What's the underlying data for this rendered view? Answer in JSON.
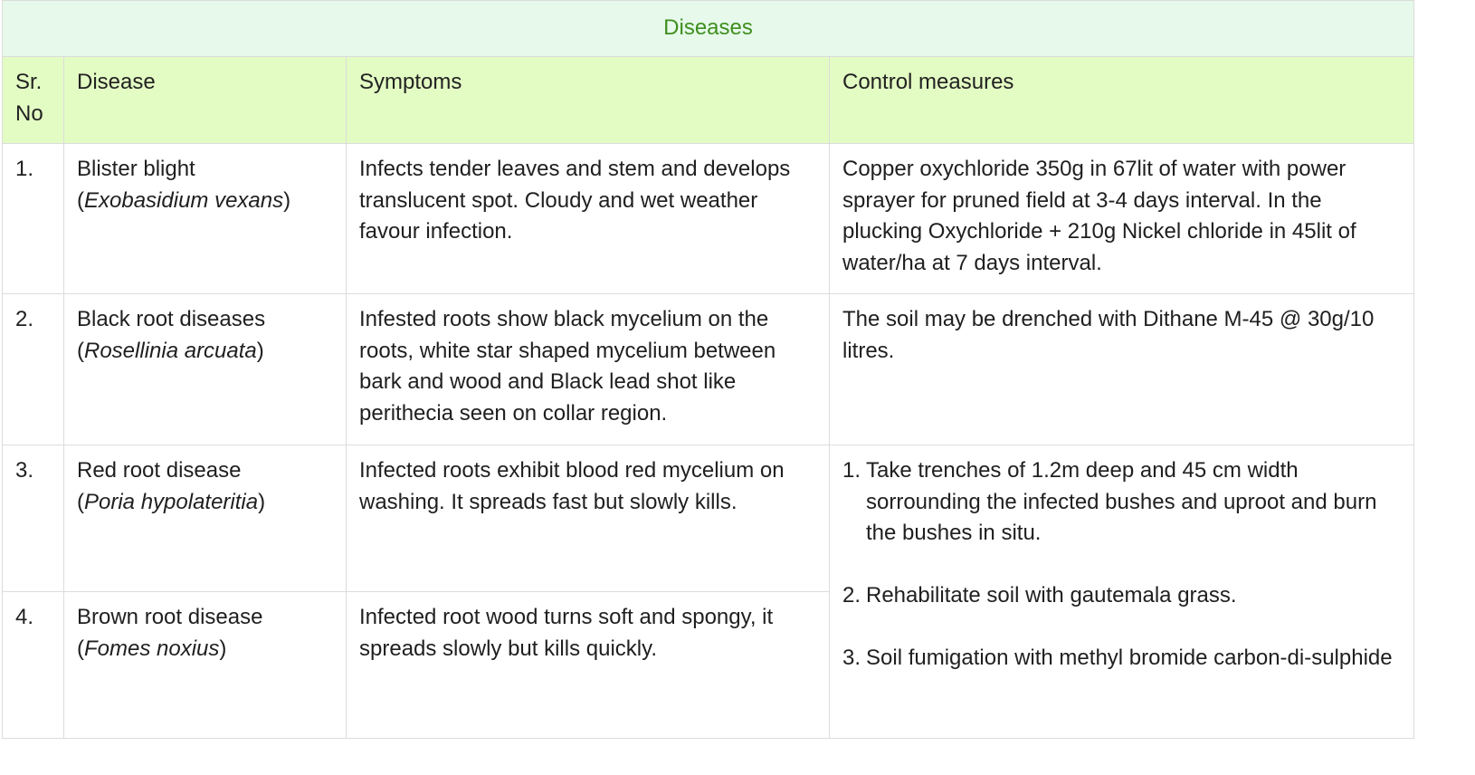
{
  "table": {
    "title": "Diseases",
    "headers": {
      "sr": "Sr. No",
      "disease": "Disease",
      "symptoms": "Symptoms",
      "control": "Control measures"
    },
    "rows": [
      {
        "sr": "1.",
        "disease_name": "Blister blight",
        "pathogen": "Exobasidium vexans",
        "symptoms": "Infects tender leaves and stem and develops translucent spot. Cloudy and wet weather favour infection.",
        "control": "Copper oxychloride 350g in 67lit of water with power sprayer for pruned field at 3-4 days interval. In the plucking Oxychloride + 210g Nickel chloride in 45lit of water/ha at 7 days interval."
      },
      {
        "sr": "2.",
        "disease_name": "Black root diseases",
        "pathogen": "Rosellinia arcuata",
        "symptoms": "Infested roots show black mycelium on the roots, white star shaped mycelium between bark and wood and Black lead shot like perithecia seen on collar region.",
        "control": "The soil may be drenched with Dithane M-45 @ 30g/10 litres."
      },
      {
        "sr": "3.",
        "disease_name": "Red root disease",
        "pathogen": "Poria hypolateritia",
        "symptoms": "Infected roots exhibit blood red mycelium on washing. It spreads fast but slowly kills."
      },
      {
        "sr": "4.",
        "disease_name": "Brown root disease",
        "pathogen": "Fomes noxius",
        "symptoms": "Infected root wood turns soft and spongy, it spreads slowly but kills quickly."
      }
    ],
    "shared_control_rows_3_4": [
      {
        "num": "1.",
        "text": "Take trenches of 1.2m deep and 45 cm width sorrounding the infected bushes and uproot and burn the bushes in situ."
      },
      {
        "num": "2.",
        "text": "Rehabilitate soil with gautemala grass."
      },
      {
        "num": "3.",
        "text": "Soil fumigation with methyl bromide carbon-di-sulphide"
      }
    ]
  },
  "colors": {
    "title_bg": "#e6f9ea",
    "title_text": "#3f8f1f",
    "header_bg": "#e3fcc3",
    "border": "#dcdcdc"
  }
}
